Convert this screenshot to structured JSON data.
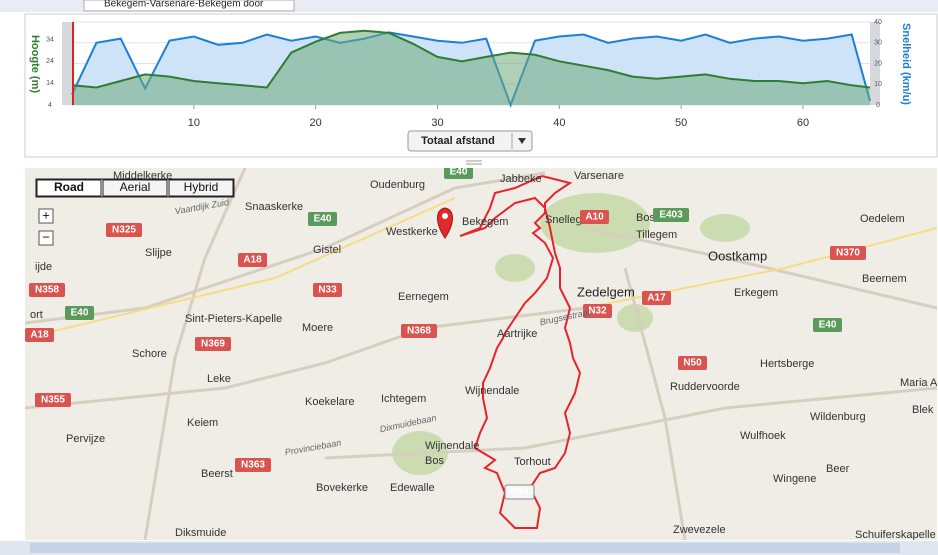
{
  "window": {
    "tab_title": "Bekegem-Varsenare-Bekegem door"
  },
  "chart_data": {
    "type": "line",
    "y_label": "Hoogte (m)",
    "y2_label": "Snelheid (km/u)",
    "x": [
      0,
      2,
      4,
      6,
      8,
      10,
      12,
      14,
      16,
      18,
      20,
      22,
      24,
      26,
      28,
      30,
      32,
      34,
      36,
      38,
      40,
      42,
      44,
      46,
      48,
      50,
      52,
      54,
      56,
      58,
      60,
      62,
      64,
      65.5
    ],
    "series": [
      {
        "name": "Snelheid",
        "axis": "y2",
        "color": "#1a7fd9",
        "fill": "#cfe3f8",
        "values": [
          5,
          30,
          32,
          8,
          31,
          33,
          29,
          30,
          34,
          31,
          33,
          30,
          32,
          35,
          33,
          31,
          30,
          32,
          0,
          31,
          33,
          34,
          30,
          32,
          33,
          31,
          34,
          30,
          32,
          33,
          31,
          32,
          34,
          2
        ]
      },
      {
        "name": "Hoogte",
        "axis": "y",
        "color": "#2e7d32",
        "fill": "rgba(110,170,120,0.55)",
        "values": [
          13,
          12,
          15,
          18,
          17,
          15,
          14,
          13,
          12,
          28,
          33,
          37,
          38,
          37,
          32,
          26,
          24,
          26,
          28,
          27,
          24,
          22,
          20,
          17,
          16,
          17,
          18,
          16,
          15,
          15,
          14,
          15,
          13,
          12
        ]
      }
    ],
    "xlim": [
      0,
      65.5
    ],
    "xticks": [
      10,
      20,
      30,
      40,
      50,
      60
    ],
    "ylim": [
      4,
      42
    ],
    "yticks": [
      4,
      14,
      24,
      34
    ],
    "y2lim": [
      0,
      40
    ],
    "y2ticks": [
      0,
      10,
      20,
      30,
      40
    ],
    "grid": true
  },
  "controls": {
    "distance_select": "Totaal afstand",
    "map_types": [
      "Road",
      "Aerial",
      "Hybrid"
    ],
    "selected_map_type": "Road",
    "zoom_in": "+",
    "zoom_out": "−"
  },
  "map": {
    "places": [
      "Middelkerke",
      "Oudenburg",
      "Jabbeke",
      "Varsenare",
      "Snaaskerke",
      "Westkerke",
      "Bekegem",
      "Snellegem",
      "Bos Van",
      "Tillegem",
      "Oedelem",
      "Gistel",
      "Slijpe",
      "Oostkamp",
      "Beernem",
      "ijde",
      "Zedelgem",
      "Erkegem",
      "Eernegem",
      "Sint-Pieters-Kapelle",
      "Moere",
      "Aartrijke",
      "ort",
      "Schore",
      "Hertsberge",
      "Leke",
      "Ruddervoorde",
      "Maria Aal",
      "Wijnendale",
      "Koekelare",
      "Ichtegem",
      "Wildenburg",
      "Blek",
      "Keiem",
      "Pervijze",
      "Wulfhoek",
      "Wijnendale",
      "Bos",
      "Torhout",
      "Beer",
      "Beerst",
      "Wingene",
      "Bovekerke",
      "Edewalle",
      "Zwevezele",
      "Diksmuide",
      "Schuiferskapelle"
    ],
    "roads": [
      "E40",
      "N325",
      "E40",
      "A10",
      "E403",
      "N370",
      "A18",
      "N358",
      "N33",
      "A17",
      "N32",
      "E40",
      "E40",
      "A18",
      "N368",
      "N369",
      "N50",
      "N355",
      "N363",
      "R34"
    ],
    "street_names": [
      "Vaartdijk Zuid",
      "Brugsestraat",
      "Provinciebaan",
      "Dixmuidebaan"
    ]
  }
}
